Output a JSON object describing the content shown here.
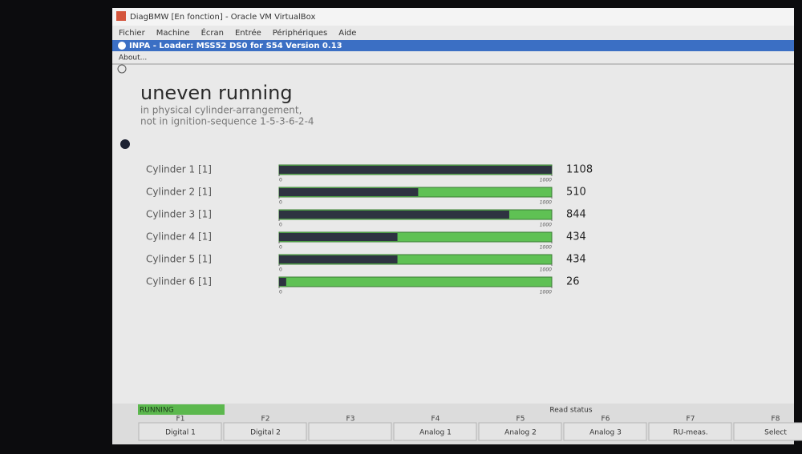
{
  "window": {
    "title": "DiagBMW [En fonction] - Oracle VM VirtualBox",
    "menu": [
      "Fichier",
      "Machine",
      "Écran",
      "Entrée",
      "Périphériques",
      "Aide"
    ]
  },
  "inpa": {
    "title": "INPA - Loader: MSS52 DS0 for S54 Version 0.13",
    "about": "About..."
  },
  "screen": {
    "heading": "uneven running",
    "subtitle": [
      "in physical cylinder-arrangement,",
      "not in ignition-sequence 1-5-3-6-2-4"
    ],
    "scale": {
      "min": 0,
      "max": 1000
    },
    "cylinders": [
      {
        "label": "Cylinder 1 [1]",
        "value": 1108
      },
      {
        "label": "Cylinder 2 [1]",
        "value": 510
      },
      {
        "label": "Cylinder 3 [1]",
        "value": 844
      },
      {
        "label": "Cylinder 4 [1]",
        "value": 434
      },
      {
        "label": "Cylinder 5 [1]",
        "value": 434
      },
      {
        "label": "Cylinder 6 [1]",
        "value": 26
      }
    ]
  },
  "status": {
    "state": "RUNNING",
    "message": "Read status"
  },
  "function_keys": [
    {
      "key": "F1",
      "label": "Digital 1"
    },
    {
      "key": "F2",
      "label": "Digital 2"
    },
    {
      "key": "F3"
    },
    {
      "key": "F4",
      "label": "Analog 1"
    },
    {
      "key": "F5",
      "label": "Analog 2"
    },
    {
      "key": "F6",
      "label": "Analog 3"
    },
    {
      "key": "F7",
      "label": "RU-meas."
    },
    {
      "key": "F8",
      "label": "Select"
    }
  ]
}
